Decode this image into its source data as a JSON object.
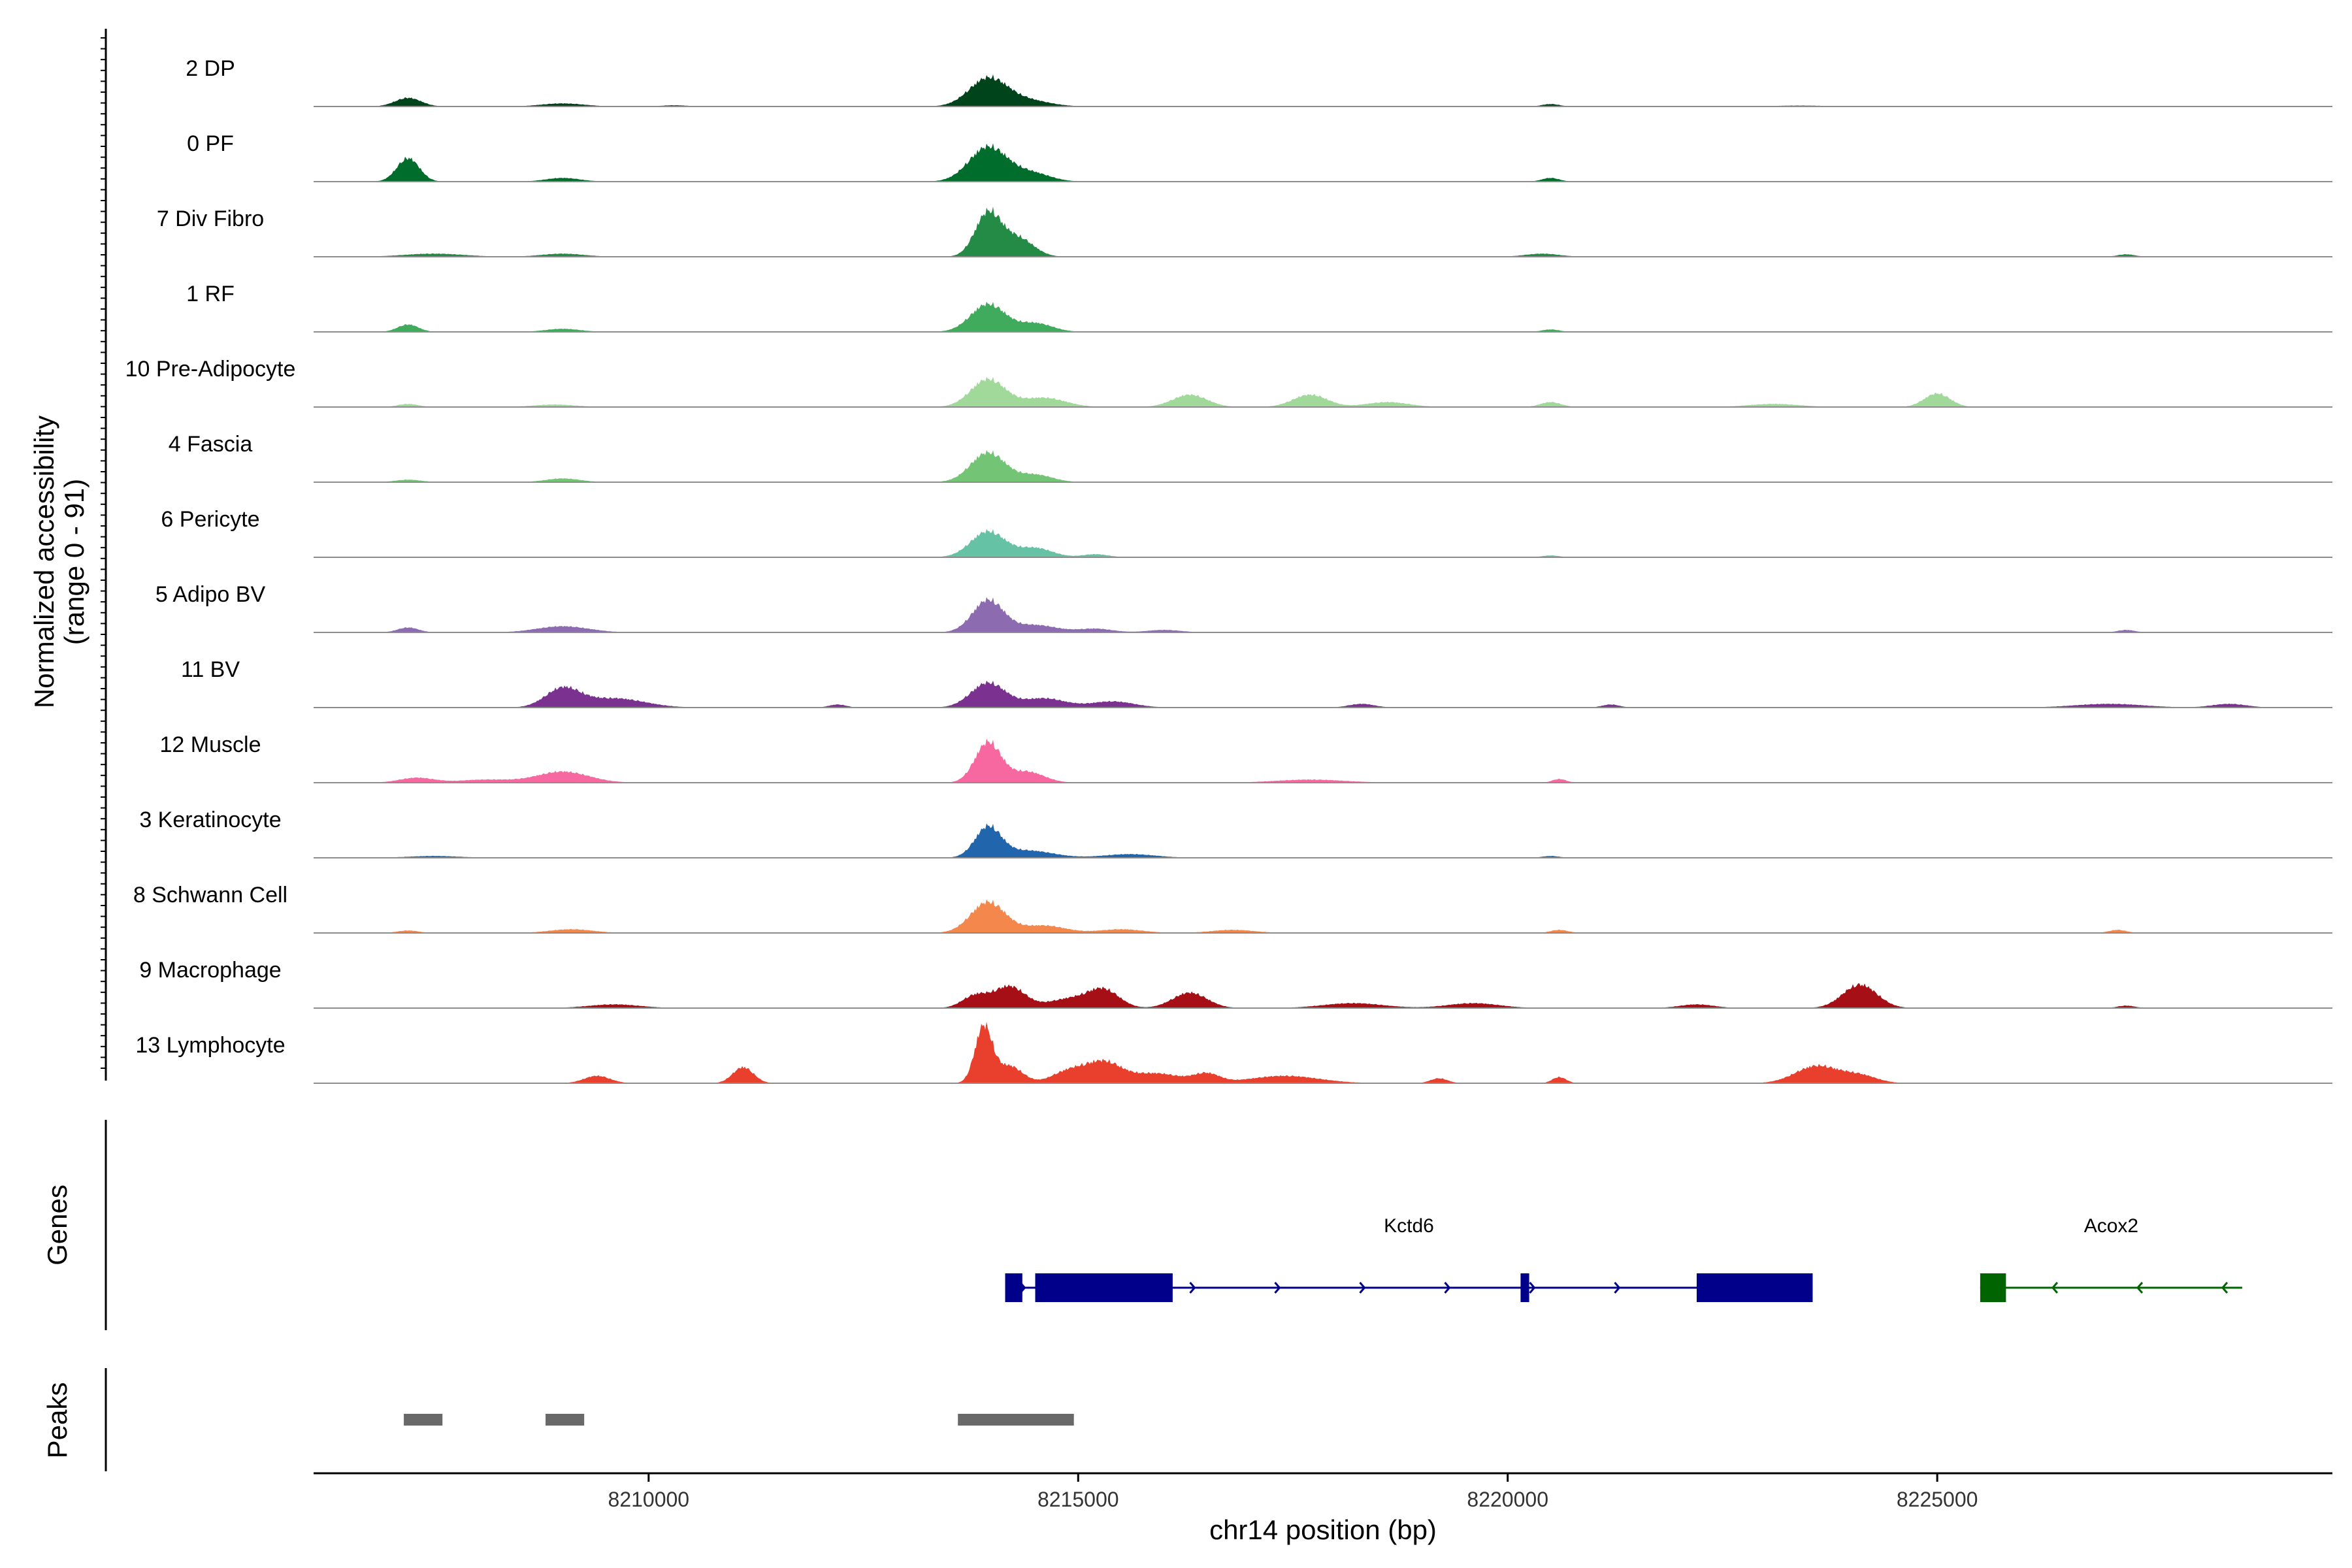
{
  "chart_data": {
    "type": "area",
    "title": "",
    "chromosome": "chr14",
    "xlabel": "chr14 position (bp)",
    "ylabel_line1": "Normalized accessibility",
    "ylabel_line2": "(range 0 - 91)",
    "xlim": [
      8206100,
      8229600
    ],
    "xticks": [
      8210000,
      8215000,
      8220000,
      8225000
    ],
    "ylim": [
      0,
      91
    ],
    "grid": false,
    "legend": "none",
    "tracks": [
      {
        "label": "2 DP",
        "color": "#00441b",
        "peaks": [
          [
            8207200,
            14,
            150
          ],
          [
            8209000,
            5,
            250
          ],
          [
            8210300,
            2,
            150
          ],
          [
            8213950,
            45,
            220
          ],
          [
            8214400,
            10,
            260
          ],
          [
            8220500,
            4,
            100
          ],
          [
            8223400,
            1.5,
            300
          ]
        ]
      },
      {
        "label": "0 PF",
        "color": "#006d2c",
        "peaks": [
          [
            8207200,
            38,
            130
          ],
          [
            8209000,
            6,
            200
          ],
          [
            8213950,
            56,
            220
          ],
          [
            8214450,
            14,
            220
          ],
          [
            8220500,
            6,
            100
          ]
        ]
      },
      {
        "label": "7 Div Fibro",
        "color": "#238b45",
        "peaks": [
          [
            8207500,
            5,
            350
          ],
          [
            8209000,
            5,
            250
          ],
          [
            8213950,
            70,
            150
          ],
          [
            8214300,
            30,
            180
          ],
          [
            8220400,
            5,
            200
          ],
          [
            8227200,
            4,
            100
          ]
        ]
      },
      {
        "label": "1 RF",
        "color": "#41ab5d",
        "peaks": [
          [
            8207200,
            12,
            120
          ],
          [
            8209000,
            5,
            200
          ],
          [
            8213950,
            45,
            200
          ],
          [
            8214500,
            14,
            200
          ],
          [
            8220500,
            4,
            100
          ]
        ]
      },
      {
        "label": "10 Pre-Adipocyte",
        "color": "#a1d99b",
        "peaks": [
          [
            8207200,
            5,
            120
          ],
          [
            8208900,
            4,
            250
          ],
          [
            8213950,
            45,
            200
          ],
          [
            8214600,
            15,
            250
          ],
          [
            8216300,
            20,
            200
          ],
          [
            8217700,
            20,
            200
          ],
          [
            8218600,
            8,
            250
          ],
          [
            8220500,
            8,
            120
          ],
          [
            8223100,
            5,
            300
          ],
          [
            8225000,
            22,
            150
          ]
        ]
      },
      {
        "label": "4 Fascia",
        "color": "#74c476",
        "peaks": [
          [
            8207200,
            4,
            150
          ],
          [
            8209000,
            6,
            200
          ],
          [
            8213950,
            48,
            200
          ],
          [
            8214500,
            12,
            200
          ]
        ]
      },
      {
        "label": "6 Pericyte",
        "color": "#66c2a4",
        "peaks": [
          [
            8213950,
            42,
            200
          ],
          [
            8214500,
            15,
            200
          ],
          [
            8215200,
            5,
            150
          ],
          [
            8220500,
            3,
            100
          ]
        ]
      },
      {
        "label": "5 Adipo BV",
        "color": "#8c6bb1",
        "peaks": [
          [
            8207200,
            8,
            120
          ],
          [
            8209000,
            10,
            300
          ],
          [
            8213950,
            52,
            180
          ],
          [
            8214500,
            12,
            250
          ],
          [
            8215200,
            6,
            200
          ],
          [
            8216000,
            4,
            200
          ],
          [
            8227200,
            4,
            100
          ]
        ]
      },
      {
        "label": "11 BV",
        "color": "#7a3190",
        "peaks": [
          [
            8209000,
            30,
            200
          ],
          [
            8209600,
            15,
            350
          ],
          [
            8212200,
            5,
            100
          ],
          [
            8213950,
            40,
            200
          ],
          [
            8214600,
            15,
            250
          ],
          [
            8215400,
            10,
            250
          ],
          [
            8218300,
            6,
            150
          ],
          [
            8221200,
            5,
            100
          ],
          [
            8227000,
            6,
            400
          ],
          [
            8228400,
            6,
            200
          ]
        ]
      },
      {
        "label": "12 Muscle",
        "color": "#f768a1",
        "peaks": [
          [
            8207300,
            8,
            200
          ],
          [
            8208100,
            5,
            300
          ],
          [
            8209000,
            18,
            300
          ],
          [
            8213950,
            65,
            150
          ],
          [
            8214400,
            18,
            200
          ],
          [
            8217700,
            5,
            400
          ],
          [
            8220600,
            6,
            80
          ]
        ]
      },
      {
        "label": "3 Keratinocyte",
        "color": "#2166ac",
        "peaks": [
          [
            8207500,
            3,
            300
          ],
          [
            8213950,
            48,
            150
          ],
          [
            8214400,
            12,
            300
          ],
          [
            8215600,
            6,
            300
          ],
          [
            8220500,
            3,
            100
          ]
        ]
      },
      {
        "label": "8 Schwann Cell",
        "color": "#f4874b",
        "peaks": [
          [
            8207200,
            4,
            120
          ],
          [
            8209100,
            6,
            250
          ],
          [
            8213950,
            50,
            200
          ],
          [
            8214600,
            12,
            250
          ],
          [
            8215500,
            6,
            250
          ],
          [
            8216800,
            5,
            250
          ],
          [
            8220600,
            5,
            100
          ],
          [
            8227100,
            5,
            100
          ]
        ]
      },
      {
        "label": "9 Macrophage",
        "color": "#a50f15",
        "peaks": [
          [
            8209600,
            6,
            300
          ],
          [
            8213800,
            20,
            150
          ],
          [
            8214200,
            35,
            180
          ],
          [
            8214900,
            15,
            250
          ],
          [
            8215300,
            28,
            180
          ],
          [
            8216300,
            25,
            200
          ],
          [
            8218200,
            8,
            350
          ],
          [
            8219600,
            8,
            300
          ],
          [
            8222200,
            6,
            200
          ],
          [
            8224100,
            38,
            200
          ],
          [
            8227200,
            4,
            100
          ]
        ]
      },
      {
        "label": "13 Lymphocyte",
        "color": "#e8402d",
        "peaks": [
          [
            8209400,
            12,
            150
          ],
          [
            8211100,
            26,
            120
          ],
          [
            8213900,
            91,
            100
          ],
          [
            8214200,
            28,
            150
          ],
          [
            8214900,
            20,
            200
          ],
          [
            8215300,
            32,
            200
          ],
          [
            8215900,
            16,
            300
          ],
          [
            8216500,
            14,
            150
          ],
          [
            8217400,
            12,
            400
          ],
          [
            8219200,
            8,
            100
          ],
          [
            8220600,
            10,
            80
          ],
          [
            8223600,
            28,
            250
          ],
          [
            8224100,
            12,
            200
          ]
        ]
      }
    ],
    "genes_track_label": "Genes",
    "genes": [
      {
        "name": "Kctd6",
        "strand": "+",
        "color": "#00008b",
        "start": 8214150,
        "end": 8223550,
        "exons": [
          [
            8214150,
            8214350
          ],
          [
            8214500,
            8216100
          ],
          [
            8220150,
            8220250
          ],
          [
            8222200,
            8223550
          ]
        ]
      },
      {
        "name": "Acox2",
        "strand": "-",
        "color": "#006400",
        "start": 8225500,
        "end": 8228550,
        "exons": [
          [
            8225500,
            8225800
          ]
        ]
      }
    ],
    "peaks_track_label": "Peaks",
    "peak_regions": [
      [
        8207150,
        8207600
      ],
      [
        8208800,
        8209250
      ],
      [
        8213600,
        8214950
      ]
    ],
    "peak_color": "#696969"
  }
}
